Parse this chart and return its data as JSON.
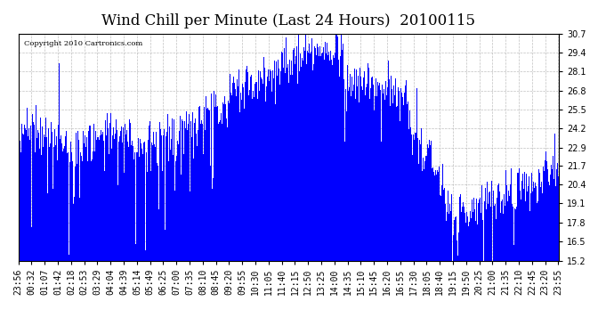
{
  "title": "Wind Chill per Minute (Last 24 Hours)  20100115",
  "copyright_text": "Copyright 2010 Cartronics.com",
  "bar_color": "#0000ff",
  "background_color": "#ffffff",
  "plot_bg_color": "#ffffff",
  "grid_color": "#b0b0b0",
  "ymin": 15.2,
  "ymax": 30.7,
  "yticks": [
    15.2,
    16.5,
    17.8,
    19.1,
    20.4,
    21.7,
    22.9,
    24.2,
    25.5,
    26.8,
    28.1,
    29.4,
    30.7
  ],
  "title_fontsize": 12,
  "tick_fontsize": 7,
  "x_tick_labels": [
    "23:56",
    "00:32",
    "01:07",
    "01:42",
    "02:18",
    "02:53",
    "03:29",
    "04:04",
    "04:39",
    "05:14",
    "05:49",
    "06:25",
    "07:00",
    "07:35",
    "08:10",
    "08:45",
    "09:20",
    "09:55",
    "10:30",
    "11:05",
    "11:40",
    "12:15",
    "12:50",
    "13:25",
    "14:00",
    "14:35",
    "15:10",
    "15:45",
    "16:20",
    "16:55",
    "17:30",
    "18:05",
    "18:40",
    "19:15",
    "19:50",
    "20:25",
    "21:00",
    "21:35",
    "22:10",
    "22:45",
    "23:20",
    "23:55"
  ]
}
